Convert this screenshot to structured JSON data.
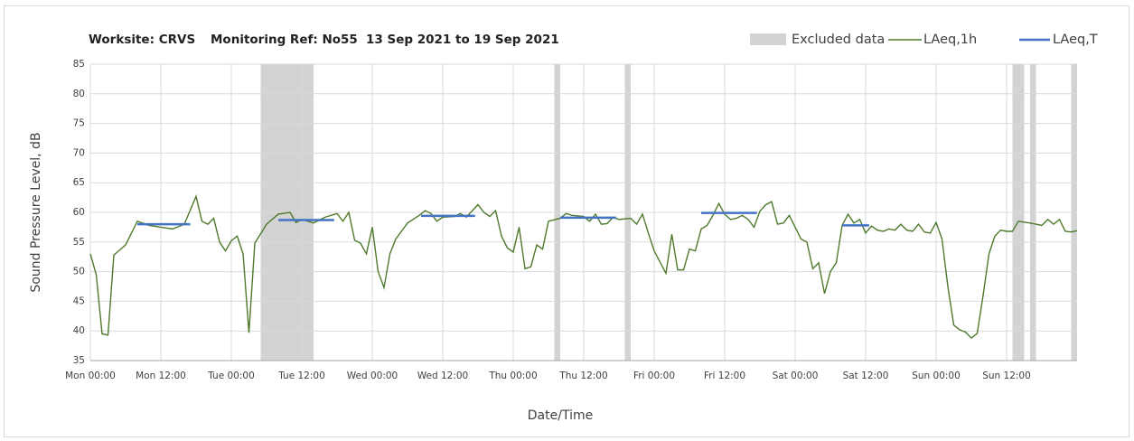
{
  "chart_data": {
    "type": "line",
    "title_parts": [
      "Worksite: CRVS",
      "Monitoring Ref: No55",
      "13 Sep 2021 to 19 Sep 2021"
    ],
    "xlabel": "Date/Time",
    "ylabel": "Sound Pressure Level, dB",
    "xlim": [
      0,
      168
    ],
    "ylim": [
      35,
      85
    ],
    "yticks": [
      35,
      40,
      45,
      50,
      55,
      60,
      65,
      70,
      75,
      80,
      85
    ],
    "xticks": [
      {
        "value": 0,
        "label": "Mon 00:00"
      },
      {
        "value": 12,
        "label": "Mon 12:00"
      },
      {
        "value": 24,
        "label": "Tue 00:00"
      },
      {
        "value": 36,
        "label": "Tue 12:00"
      },
      {
        "value": 48,
        "label": "Wed 00:00"
      },
      {
        "value": 60,
        "label": "Wed 12:00"
      },
      {
        "value": 72,
        "label": "Thu 00:00"
      },
      {
        "value": 84,
        "label": "Thu 12:00"
      },
      {
        "value": 96,
        "label": "Fri 00:00"
      },
      {
        "value": 108,
        "label": "Fri 12:00"
      },
      {
        "value": 120,
        "label": "Sat 00:00"
      },
      {
        "value": 132,
        "label": "Sat 12:00"
      },
      {
        "value": 144,
        "label": "Sun 00:00"
      },
      {
        "value": 156,
        "label": "Sun 12:00"
      }
    ],
    "grid": true,
    "excluded": {
      "name": "Excluded data",
      "color": "#d3d3d3",
      "ranges": [
        [
          29,
          38
        ],
        [
          79,
          80
        ],
        [
          91,
          92
        ],
        [
          157,
          159
        ],
        [
          160,
          161
        ],
        [
          167,
          168
        ]
      ]
    },
    "series": [
      {
        "name": "LAeq,1h",
        "color": "#4f7a2c",
        "x": [
          0,
          1,
          2,
          3,
          4,
          6,
          8,
          10,
          12,
          14,
          16,
          18,
          19,
          20,
          21,
          22,
          23,
          24,
          25,
          26,
          27,
          28,
          30,
          32,
          34,
          35,
          36,
          38,
          40,
          42,
          43,
          44,
          45,
          46,
          47,
          48,
          49,
          50,
          51,
          52,
          54,
          56,
          57,
          58,
          59,
          60,
          62,
          63,
          64,
          66,
          67,
          68,
          69,
          70,
          71,
          72,
          73,
          74,
          75,
          76,
          77,
          78,
          80,
          81,
          82,
          84,
          85,
          86,
          87,
          88,
          89,
          90,
          92,
          93,
          94,
          95,
          96,
          98,
          99,
          100,
          101,
          102,
          103,
          104,
          105,
          106,
          107,
          108,
          109,
          110,
          111,
          112,
          113,
          114,
          115,
          116,
          117,
          118,
          119,
          120,
          121,
          122,
          123,
          124,
          125,
          126,
          127,
          128,
          129,
          130,
          131,
          132,
          133,
          134,
          135,
          136,
          137,
          138,
          139,
          140,
          141,
          142,
          143,
          144,
          145,
          146,
          147,
          148,
          149,
          150,
          151,
          152,
          153,
          154,
          155,
          156,
          157,
          158,
          160,
          161,
          162,
          163,
          164,
          165,
          166,
          167,
          168
        ],
        "values": [
          53,
          49.5,
          39.5,
          39.3,
          52.8,
          54.5,
          58.5,
          57.8,
          57.5,
          57.2,
          58,
          62.7,
          58.5,
          58,
          59,
          55,
          53.5,
          55.2,
          56,
          53,
          39.7,
          54.8,
          58,
          59.7,
          60,
          58.3,
          58.8,
          58.2,
          59.2,
          59.8,
          58.5,
          60,
          55.3,
          54.8,
          53,
          57.5,
          50,
          47.3,
          53,
          55.5,
          58.2,
          59.5,
          60.3,
          59.8,
          58.5,
          59.2,
          59.3,
          59.8,
          59.2,
          61.3,
          60,
          59.3,
          60.3,
          56,
          54,
          53.3,
          57.5,
          50.5,
          50.8,
          54.5,
          53.8,
          58.5,
          59,
          59.8,
          59.5,
          59.3,
          58.5,
          59.7,
          58,
          58.1,
          59.2,
          58.8,
          59,
          58,
          59.7,
          56.5,
          53.5,
          49.7,
          56.3,
          50.3,
          50.3,
          53.8,
          53.5,
          57.2,
          57.8,
          59.5,
          61.5,
          59.7,
          58.8,
          59,
          59.5,
          58.8,
          57.5,
          60.2,
          61.3,
          61.8,
          58,
          58.2,
          59.5,
          57.5,
          55.5,
          55,
          50.5,
          51.5,
          46.3,
          50,
          51.5,
          57.8,
          59.7,
          58.2,
          58.8,
          56.5,
          57.7,
          57,
          56.8,
          57.2,
          57,
          58,
          57,
          56.8,
          58,
          56.7,
          56.5,
          58.3,
          55.5,
          47.5,
          41,
          40.2,
          39.8,
          38.8,
          39.6,
          46,
          53,
          56,
          57,
          56.8,
          56.8,
          58.5,
          58.2,
          58,
          57.8,
          58.8,
          58,
          58.8,
          56.8,
          56.7,
          56.9
        ]
      },
      {
        "name": "LAeq,T",
        "color": "#4472c4",
        "starts": [
          8,
          32,
          56.3,
          80,
          104,
          128
        ],
        "ends": [
          17,
          41.5,
          65.5,
          89.5,
          113.5,
          132.6
        ],
        "values": [
          58,
          58.7,
          59.4,
          59.1,
          59.9,
          57.8
        ]
      }
    ]
  }
}
